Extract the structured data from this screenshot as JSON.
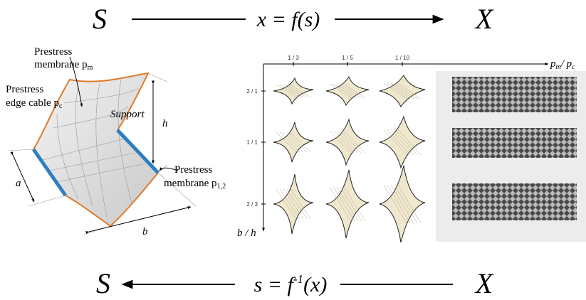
{
  "top_map": {
    "left": "S",
    "formula": "x = f(s)",
    "right": "X"
  },
  "bottom_map": {
    "left": "S",
    "formula_main": "s = f",
    "formula_sup": "-1",
    "formula_end": "(x)",
    "right": "X"
  },
  "membrane_figure": {
    "membrane_label": {
      "line1": "Prestress",
      "line2": "membrane p",
      "sub": "m"
    },
    "cable_label": {
      "line1": "Prestress",
      "line2": "edge cable  p",
      "sub": "c"
    },
    "support_label": "Support",
    "h_label": "h",
    "a_label": "a",
    "b_label": "b",
    "membrane12_label": {
      "line1": "Prestress",
      "line2": "membrane p",
      "sub": "1,2"
    }
  },
  "grid_figure": {
    "x_ticks": [
      "1 / 3",
      "1 / 5",
      "1 / 10"
    ],
    "x_axis_label": {
      "p1": "p",
      "sub1": "m",
      "slash": "/ p",
      "sub2": "c"
    },
    "y_ticks": [
      "2 / 1",
      "1 / 1",
      "2 / 3"
    ],
    "y_axis_label": "b / h"
  }
}
